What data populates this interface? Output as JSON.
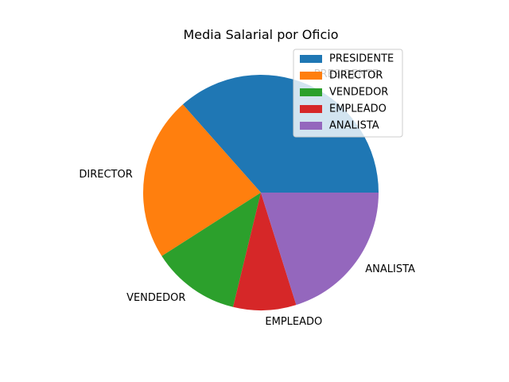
{
  "chart_data": {
    "type": "pie",
    "title": "Media Salarial por Oficio",
    "categories": [
      "PRESIDENTE",
      "DIRECTOR",
      "VENDEDOR",
      "EMPLEADO",
      "ANALISTA"
    ],
    "values": [
      390000,
      240416,
      129550,
      92375,
      215000
    ],
    "colors": [
      "#1f77b4",
      "#ff7f0e",
      "#2ca02c",
      "#d62728",
      "#9467bd"
    ],
    "start_angle_deg": 0,
    "direction": "counterclockwise",
    "legend_placement": "upper right"
  }
}
